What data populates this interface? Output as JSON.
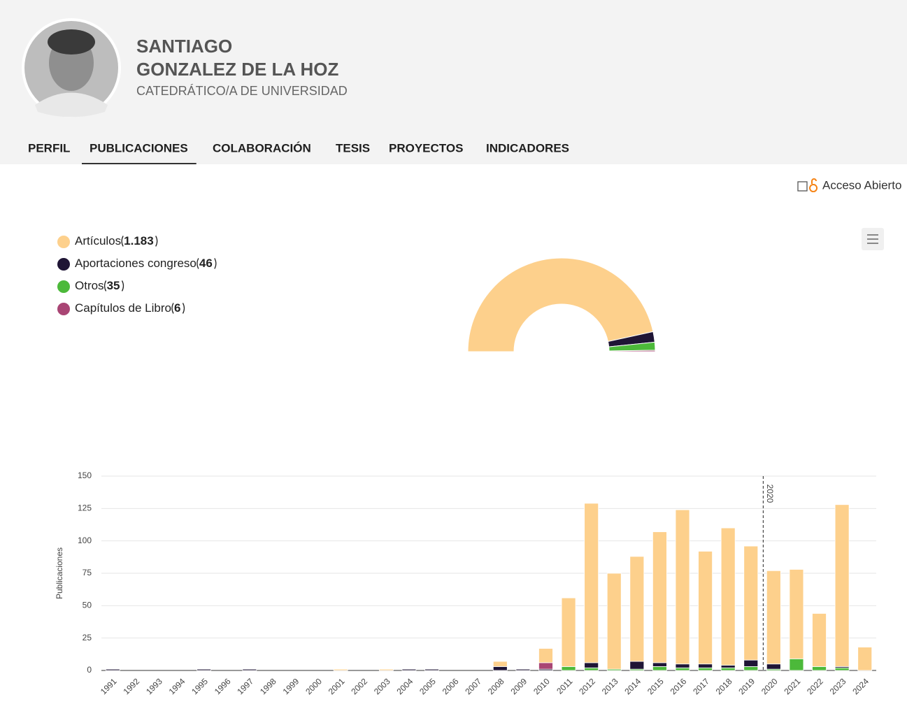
{
  "profile": {
    "first_name": "SANTIAGO",
    "last_name": "GONZALEZ DE LA HOZ",
    "position": "CATEDRÁTICO/A DE UNIVERSIDAD"
  },
  "tabs": [
    "PERFIL",
    "PUBLICACIONES",
    "COLABORACIÓN",
    "TESIS",
    "PROYECTOS",
    "INDICADORES"
  ],
  "active_tab": 1,
  "open_access_label": "Acceso Abierto",
  "chart_data": [
    {
      "type": "pie",
      "half_donut": true,
      "categories": [
        "Artículos",
        "Aportaciones congreso",
        "Otros",
        "Capítulos de Libro"
      ],
      "values": [
        1183,
        46,
        35,
        6
      ],
      "value_labels": [
        "1.183",
        "46",
        "35",
        "6"
      ],
      "colors": [
        "#fdd08c",
        "#1f1535",
        "#4cb93a",
        "#a94574"
      ]
    },
    {
      "type": "stacked_bar",
      "ylabel": "Publicaciones",
      "categories": [
        "1991",
        "1992",
        "1993",
        "1994",
        "1995",
        "1996",
        "1997",
        "1998",
        "1999",
        "2000",
        "2001",
        "2002",
        "2003",
        "2004",
        "2005",
        "2006",
        "2007",
        "2008",
        "2009",
        "2010",
        "2011",
        "2012",
        "2013",
        "2014",
        "2015",
        "2016",
        "2017",
        "2018",
        "2019",
        "2020",
        "2021",
        "2022",
        "2023",
        "2024"
      ],
      "series": [
        {
          "color": "#4cb93a",
          "values": [
            0,
            0,
            0,
            0,
            0,
            0,
            0,
            0,
            0,
            0,
            0,
            0,
            0,
            0,
            0,
            0,
            0,
            0,
            0,
            0,
            3,
            2,
            1,
            1,
            3,
            2,
            2,
            2,
            3,
            1,
            9,
            3,
            2,
            0
          ]
        },
        {
          "color": "#1f1535",
          "values": [
            1,
            0,
            0,
            0,
            1,
            0,
            1,
            0,
            0,
            0,
            0,
            0,
            0,
            1,
            1,
            0,
            0,
            3,
            1,
            1,
            0,
            4,
            0,
            6,
            3,
            3,
            3,
            2,
            5,
            4,
            0,
            0,
            1,
            0
          ]
        },
        {
          "color": "#a94574",
          "values": [
            0,
            0,
            0,
            0,
            0,
            0,
            0,
            0,
            0,
            0,
            0,
            0,
            0,
            0,
            0,
            0,
            0,
            0,
            0,
            5,
            0,
            0,
            0,
            0,
            0,
            0,
            0,
            0,
            0,
            0,
            0,
            0,
            0,
            0
          ]
        },
        {
          "color": "#fdd08c",
          "values": [
            0,
            0,
            0,
            0,
            0,
            0,
            0,
            0,
            0,
            0,
            1,
            0,
            1,
            0,
            0,
            0,
            0,
            4,
            0,
            11,
            53,
            123,
            74,
            81,
            101,
            119,
            87,
            106,
            88,
            72,
            69,
            41,
            125,
            18
          ]
        }
      ],
      "ylim": [
        0,
        150
      ],
      "yticks": [
        0,
        25,
        50,
        75,
        100,
        125,
        150
      ],
      "grid": true,
      "plot_line": "2020"
    }
  ]
}
